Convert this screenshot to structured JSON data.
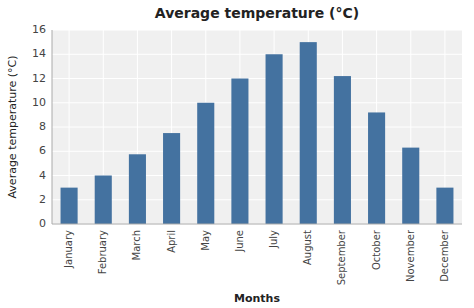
{
  "chart_data": {
    "type": "bar",
    "title": "Average temperature (°C)",
    "xlabel": "Months",
    "ylabel": "Average temperature (°C)",
    "categories": [
      "January",
      "February",
      "March",
      "April",
      "May",
      "June",
      "July",
      "August",
      "September",
      "October",
      "November",
      "December"
    ],
    "values": [
      3.0,
      4.0,
      5.75,
      7.5,
      10.0,
      12.0,
      14.0,
      15.0,
      12.2,
      9.2,
      6.3,
      3.0
    ],
    "color": "#4472a0",
    "ylim": [
      0,
      16
    ],
    "yticks": [
      0,
      2,
      4,
      6,
      8,
      10,
      12,
      14,
      16
    ],
    "grid": true
  }
}
